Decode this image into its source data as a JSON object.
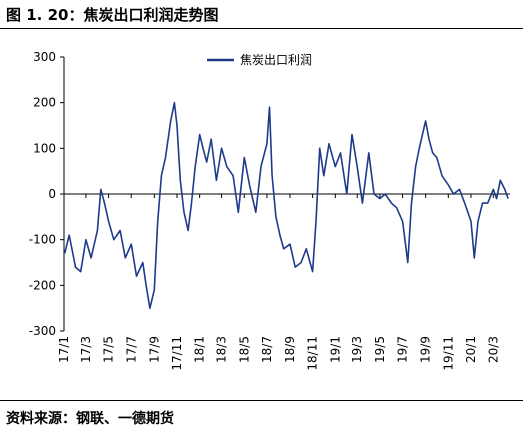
{
  "figure": {
    "title": "图 1. 20：焦炭出口利润走势图",
    "source": "资料来源：钢联、一德期货"
  },
  "colors": {
    "series": "#1f3a8a",
    "axis": "#000000"
  },
  "chart_data": {
    "type": "line",
    "title": "",
    "xlabel": "",
    "ylabel": "",
    "ylim": [
      -300,
      300
    ],
    "yticks": [
      -300,
      -200,
      -100,
      0,
      100,
      200,
      300
    ],
    "xlim": [
      "2017-01-01",
      "2020-04-15"
    ],
    "xticks": [
      "17/1",
      "17/3",
      "17/5",
      "17/7",
      "17/9",
      "17/11",
      "18/1",
      "18/3",
      "18/5",
      "18/7",
      "18/9",
      "18/11",
      "19/1",
      "19/3",
      "19/5",
      "19/7",
      "19/9",
      "19/11",
      "20/1",
      "20/3"
    ],
    "grid": false,
    "legend": "top-center",
    "series": [
      {
        "name": "焦炭出口利润",
        "x": [
          "2017-01-03",
          "2017-01-15",
          "2017-02-01",
          "2017-02-15",
          "2017-03-01",
          "2017-03-15",
          "2017-04-01",
          "2017-04-10",
          "2017-04-20",
          "2017-05-01",
          "2017-05-15",
          "2017-06-01",
          "2017-06-15",
          "2017-07-01",
          "2017-07-15",
          "2017-08-01",
          "2017-08-10",
          "2017-08-20",
          "2017-09-01",
          "2017-09-10",
          "2017-09-20",
          "2017-10-01",
          "2017-10-15",
          "2017-10-25",
          "2017-11-01",
          "2017-11-10",
          "2017-11-20",
          "2017-12-01",
          "2017-12-10",
          "2017-12-20",
          "2018-01-01",
          "2018-01-10",
          "2018-01-20",
          "2018-02-01",
          "2018-02-15",
          "2018-03-01",
          "2018-03-15",
          "2018-04-01",
          "2018-04-15",
          "2018-05-01",
          "2018-05-15",
          "2018-06-01",
          "2018-06-15",
          "2018-07-01",
          "2018-07-08",
          "2018-07-15",
          "2018-07-25",
          "2018-08-05",
          "2018-08-15",
          "2018-09-01",
          "2018-09-15",
          "2018-10-01",
          "2018-10-15",
          "2018-11-01",
          "2018-11-10",
          "2018-11-20",
          "2018-12-01",
          "2018-12-15",
          "2019-01-01",
          "2019-01-15",
          "2019-02-01",
          "2019-02-15",
          "2019-03-01",
          "2019-03-15",
          "2019-04-01",
          "2019-04-15",
          "2019-05-01",
          "2019-05-15",
          "2019-06-01",
          "2019-06-15",
          "2019-07-01",
          "2019-07-15",
          "2019-07-25",
          "2019-08-05",
          "2019-08-15",
          "2019-09-01",
          "2019-09-10",
          "2019-09-20",
          "2019-10-01",
          "2019-10-15",
          "2019-11-01",
          "2019-11-15",
          "2019-12-01",
          "2019-12-15",
          "2020-01-01",
          "2020-01-10",
          "2020-01-20",
          "2020-02-01",
          "2020-02-15",
          "2020-03-01",
          "2020-03-10",
          "2020-03-20",
          "2020-04-01",
          "2020-04-10"
        ],
        "values": [
          -130,
          -90,
          -160,
          -170,
          -100,
          -140,
          -80,
          10,
          -20,
          -60,
          -100,
          -80,
          -140,
          -110,
          -180,
          -150,
          -200,
          -250,
          -210,
          -60,
          40,
          80,
          160,
          200,
          150,
          30,
          -40,
          -80,
          -20,
          60,
          130,
          100,
          70,
          120,
          30,
          100,
          60,
          40,
          -40,
          80,
          20,
          -40,
          60,
          110,
          190,
          40,
          -50,
          -90,
          -120,
          -110,
          -160,
          -150,
          -120,
          -170,
          -60,
          100,
          40,
          110,
          60,
          90,
          0,
          130,
          60,
          -20,
          90,
          0,
          -10,
          0,
          -20,
          -30,
          -60,
          -150,
          -20,
          60,
          100,
          160,
          120,
          90,
          80,
          40,
          20,
          0,
          10,
          -20,
          -60,
          -140,
          -60,
          -20,
          -20,
          10,
          -10,
          30,
          10,
          -10
        ]
      }
    ]
  }
}
